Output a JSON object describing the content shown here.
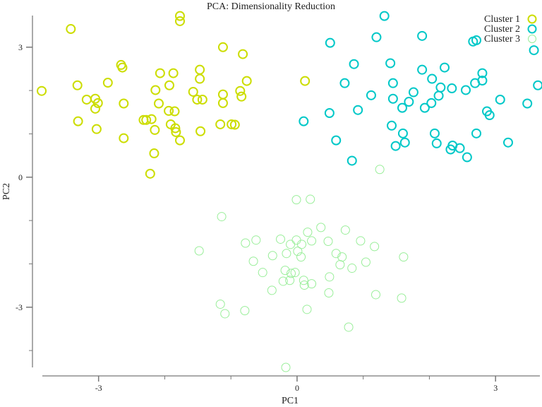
{
  "chart_data": {
    "type": "scatter",
    "title": "PCA: Dimensionality Reduction",
    "xlabel": "PC1",
    "ylabel": "PC2",
    "xlim": [
      -3.85,
      3.67
    ],
    "ylim": [
      -4.39,
      3.73
    ],
    "xticks": [
      -3,
      -2,
      -1,
      0,
      1,
      2,
      3
    ],
    "xtick_labels": [
      "-3",
      "",
      "",
      "0",
      "",
      "",
      "3"
    ],
    "yticks": [
      -4,
      -3,
      -2,
      -1,
      0,
      1,
      2,
      3
    ],
    "ytick_labels": [
      "",
      "-3",
      "",
      "",
      "0",
      "",
      "",
      "3"
    ],
    "grid": false,
    "legend_placement": "top-right",
    "series": [
      {
        "name": "Cluster 1",
        "color": "#ccdd00",
        "points": [
          [
            -3.86,
            1.99
          ],
          [
            -3.42,
            3.42
          ],
          [
            -3.32,
            2.12
          ],
          [
            -3.31,
            1.29
          ],
          [
            -3.18,
            1.79
          ],
          [
            -3.05,
            1.81
          ],
          [
            -3.01,
            1.71
          ],
          [
            -3.05,
            1.58
          ],
          [
            -3.03,
            1.11
          ],
          [
            -2.86,
            2.18
          ],
          [
            -2.66,
            2.59
          ],
          [
            -2.64,
            2.53
          ],
          [
            -2.62,
            1.7
          ],
          [
            -2.62,
            0.9
          ],
          [
            -2.32,
            1.32
          ],
          [
            -2.28,
            1.32
          ],
          [
            -2.2,
            1.34
          ],
          [
            -2.14,
            2.01
          ],
          [
            -2.16,
            0.55
          ],
          [
            -2.22,
            0.08
          ],
          [
            -2.15,
            1.09
          ],
          [
            -2.09,
            1.7
          ],
          [
            -2.07,
            2.4
          ],
          [
            -1.94,
            1.53
          ],
          [
            -1.93,
            2.12
          ],
          [
            -1.91,
            1.22
          ],
          [
            -1.87,
            2.4
          ],
          [
            -1.85,
            1.52
          ],
          [
            -1.84,
            1.13
          ],
          [
            -1.83,
            1.04
          ],
          [
            -1.77,
            0.85
          ],
          [
            -1.77,
            3.72
          ],
          [
            -1.77,
            3.6
          ],
          [
            -1.57,
            1.97
          ],
          [
            -1.51,
            1.79
          ],
          [
            -1.47,
            2.48
          ],
          [
            -1.47,
            2.27
          ],
          [
            -1.43,
            1.79
          ],
          [
            -1.46,
            1.06
          ],
          [
            -1.16,
            1.22
          ],
          [
            -1.12,
            3.0
          ],
          [
            -1.12,
            1.91
          ],
          [
            -1.12,
            1.71
          ],
          [
            -0.99,
            1.22
          ],
          [
            -0.94,
            1.21
          ],
          [
            -0.86,
            1.99
          ],
          [
            -0.84,
            1.86
          ],
          [
            -0.82,
            2.84
          ],
          [
            -0.76,
            2.22
          ],
          [
            0.12,
            2.22
          ]
        ]
      },
      {
        "name": "Cluster 2",
        "color": "#00c8c8",
        "points": [
          [
            1.32,
            3.72
          ],
          [
            1.2,
            3.23
          ],
          [
            1.89,
            3.26
          ],
          [
            0.5,
            3.1
          ],
          [
            2.66,
            3.13
          ],
          [
            2.71,
            3.16
          ],
          [
            3.58,
            2.93
          ],
          [
            0.86,
            2.61
          ],
          [
            1.41,
            2.63
          ],
          [
            1.89,
            2.48
          ],
          [
            2.23,
            2.53
          ],
          [
            0.72,
            2.17
          ],
          [
            1.45,
            2.17
          ],
          [
            2.04,
            2.27
          ],
          [
            2.8,
            2.4
          ],
          [
            2.8,
            2.23
          ],
          [
            2.69,
            2.17
          ],
          [
            2.17,
            2.07
          ],
          [
            2.34,
            2.05
          ],
          [
            2.55,
            2.01
          ],
          [
            3.64,
            2.12
          ],
          [
            1.76,
            1.96
          ],
          [
            2.14,
            1.88
          ],
          [
            1.12,
            1.89
          ],
          [
            1.45,
            1.81
          ],
          [
            1.69,
            1.74
          ],
          [
            2.03,
            1.71
          ],
          [
            1.59,
            1.6
          ],
          [
            1.93,
            1.6
          ],
          [
            3.07,
            1.79
          ],
          [
            3.48,
            1.7
          ],
          [
            0.49,
            1.48
          ],
          [
            0.92,
            1.55
          ],
          [
            0.1,
            1.29
          ],
          [
            2.87,
            1.52
          ],
          [
            2.91,
            1.43
          ],
          [
            1.43,
            1.19
          ],
          [
            1.6,
            1.01
          ],
          [
            2.08,
            1.01
          ],
          [
            2.71,
            1.01
          ],
          [
            0.59,
            0.85
          ],
          [
            1.63,
            0.8
          ],
          [
            1.49,
            0.72
          ],
          [
            2.11,
            0.78
          ],
          [
            2.35,
            0.73
          ],
          [
            2.32,
            0.64
          ],
          [
            2.46,
            0.67
          ],
          [
            3.19,
            0.8
          ],
          [
            2.57,
            0.46
          ],
          [
            0.83,
            0.38
          ]
        ]
      },
      {
        "name": "Cluster 3",
        "color": "#99ee99",
        "points": [
          [
            -0.01,
            -0.52
          ],
          [
            0.2,
            -0.51
          ],
          [
            -1.14,
            -0.91
          ],
          [
            0.36,
            -1.16
          ],
          [
            0.73,
            -1.22
          ],
          [
            0.16,
            -1.27
          ],
          [
            -0.25,
            -1.43
          ],
          [
            -0.62,
            -1.45
          ],
          [
            -0.78,
            -1.52
          ],
          [
            -0.01,
            -1.45
          ],
          [
            0.22,
            -1.47
          ],
          [
            0.47,
            -1.48
          ],
          [
            0.96,
            -1.47
          ],
          [
            -0.1,
            -1.55
          ],
          [
            0.07,
            -1.55
          ],
          [
            1.17,
            -1.6
          ],
          [
            -1.48,
            -1.7
          ],
          [
            0.01,
            -1.71
          ],
          [
            -0.16,
            -1.76
          ],
          [
            -0.37,
            -1.81
          ],
          [
            0.59,
            -1.76
          ],
          [
            0.68,
            -1.84
          ],
          [
            0.06,
            -1.84
          ],
          [
            1.61,
            -1.84
          ],
          [
            -0.66,
            -1.94
          ],
          [
            1.04,
            -1.96
          ],
          [
            0.65,
            -2.02
          ],
          [
            0.83,
            -2.1
          ],
          [
            -0.52,
            -2.2
          ],
          [
            -0.18,
            -2.15
          ],
          [
            -0.09,
            -2.22
          ],
          [
            -0.03,
            -2.2
          ],
          [
            0.49,
            -2.3
          ],
          [
            -0.21,
            -2.4
          ],
          [
            -0.11,
            -2.38
          ],
          [
            0.1,
            -2.38
          ],
          [
            0.11,
            -2.49
          ],
          [
            0.22,
            -2.46
          ],
          [
            -0.38,
            -2.61
          ],
          [
            0.48,
            -2.67
          ],
          [
            1.19,
            -2.71
          ],
          [
            1.58,
            -2.79
          ],
          [
            -1.16,
            -2.93
          ],
          [
            0.15,
            -3.05
          ],
          [
            -0.79,
            -3.08
          ],
          [
            -1.09,
            -3.15
          ],
          [
            0.78,
            -3.46
          ],
          [
            -0.17,
            -4.39
          ],
          [
            1.25,
            0.18
          ]
        ]
      }
    ]
  }
}
